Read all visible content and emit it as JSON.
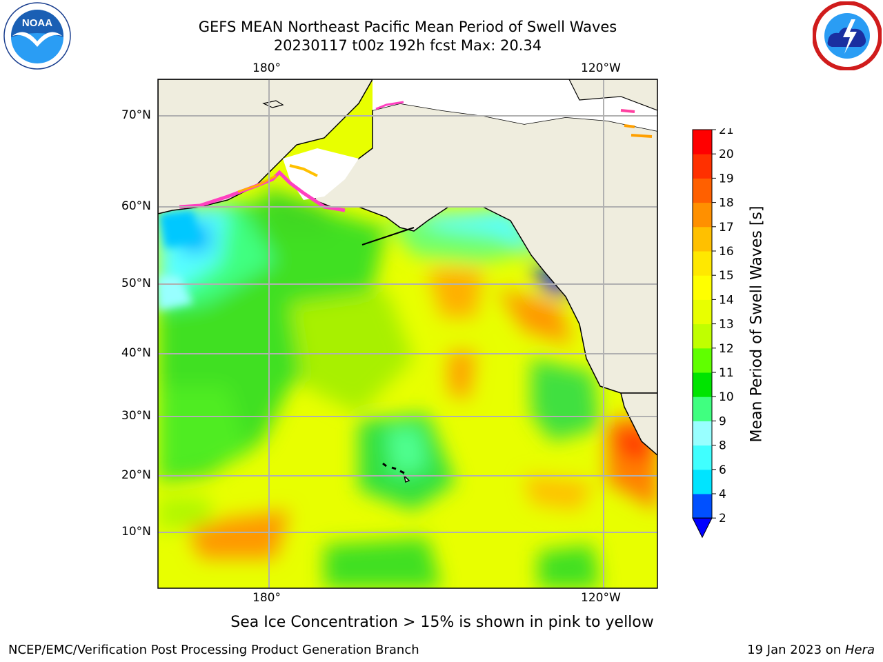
{
  "title_line1": "GEFS MEAN Northeast Pacific Mean Period of Swell Waves",
  "title_line2": "20230117 t00z 192h fcst   Max: 20.34",
  "note": "Sea Ice Concentration > 15% is shown in pink to yellow",
  "footer_left": "NCEP/EMC/Verification Post Processing Product Generation Branch",
  "footer_date": "19 Jan 2023 on",
  "footer_host": "Hera",
  "logos": {
    "left": "noaa-logo",
    "left_text": "NOAA",
    "right": "nws-logo"
  },
  "colors": {
    "land": "#efedde",
    "grid": "#b0b0b0",
    "coast": "#000000"
  },
  "axes": {
    "lon_top": [
      "180°",
      "120°W"
    ],
    "lon_bottom": [
      "180°",
      "120°W"
    ],
    "lat_left": [
      "70°N",
      "60°N",
      "50°N",
      "40°N",
      "30°N",
      "20°N",
      "10°N"
    ]
  },
  "colorbar": {
    "label": "Mean Period of Swell Waves [s]",
    "ticks": [
      "2",
      "4",
      "6",
      "8",
      "9",
      "10",
      "11",
      "12",
      "13",
      "14",
      "15",
      "16",
      "17",
      "18",
      "19",
      "20",
      "21"
    ],
    "colors": [
      "#0050ff",
      "#00e4ff",
      "#40ffff",
      "#98ffff",
      "#40ff80",
      "#00e400",
      "#60ff00",
      "#c0ff00",
      "#e8ff00",
      "#ffff00",
      "#ffe800",
      "#ffc000",
      "#ff9000",
      "#ff6000",
      "#ff3000",
      "#ff0000"
    ],
    "under_color": "#0000ff",
    "extend": "min"
  },
  "chart_data": {
    "type": "heatmap",
    "title": "GEFS MEAN Northeast Pacific Mean Period of Swell Waves",
    "subtitle": "20230117 t00z 192h fcst   Max: 20.34",
    "max_value": 20.34,
    "units": "s",
    "colorbar_levels": [
      2,
      4,
      6,
      8,
      9,
      10,
      11,
      12,
      13,
      14,
      15,
      16,
      17,
      18,
      19,
      20,
      21
    ],
    "lon_ticks": [
      "180°",
      "120°W"
    ],
    "lat_ticks": [
      "70°N",
      "60°N",
      "50°N",
      "40°N",
      "30°N",
      "20°N",
      "10°N"
    ],
    "grid": true
  }
}
